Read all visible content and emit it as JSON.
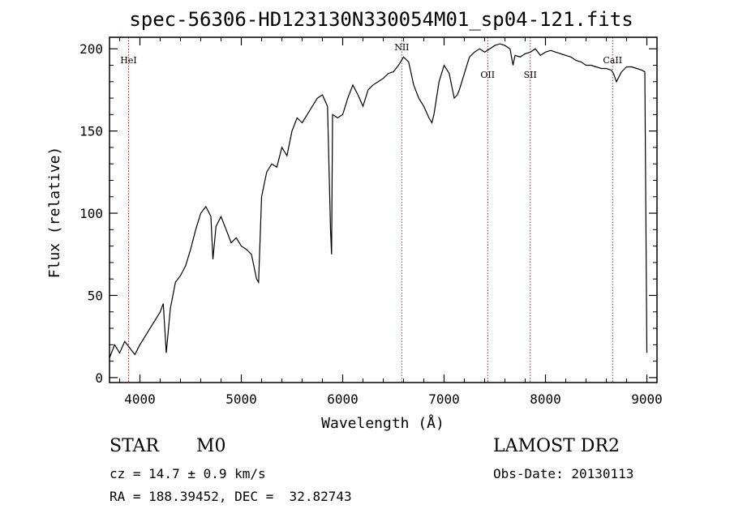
{
  "chart_data": {
    "type": "line",
    "title": "spec-56306-HD123130N330054M01_sp04-121.fits",
    "xlabel": "Wavelength (Å)",
    "ylabel": "Flux (relative)",
    "xlim": [
      3700,
      9100
    ],
    "ylim": [
      -3,
      207
    ],
    "xticks": [
      4000,
      5000,
      6000,
      7000,
      8000,
      9000
    ],
    "yticks": [
      0,
      50,
      100,
      150,
      200
    ],
    "grid": false,
    "line_color": "#000000",
    "marker_color": "#b22222",
    "series": [
      {
        "x": [
          3700,
          3750,
          3800,
          3850,
          3900,
          3950,
          4000,
          4050,
          4100,
          4150,
          4200,
          4230,
          4260,
          4300,
          4350,
          4400,
          4450,
          4500,
          4550,
          4600,
          4650,
          4700,
          4720,
          4750,
          4800,
          4850,
          4900,
          4950,
          5000,
          5050,
          5100,
          5150,
          5170,
          5200,
          5250,
          5300,
          5350,
          5400,
          5450,
          5500,
          5550,
          5600,
          5650,
          5700,
          5750,
          5800,
          5850,
          5880,
          5890,
          5900,
          5950,
          6000,
          6050,
          6100,
          6150,
          6200,
          6250,
          6300,
          6350,
          6400,
          6450,
          6500,
          6550,
          6600,
          6650,
          6700,
          6750,
          6800,
          6850,
          6880,
          6900,
          6950,
          7000,
          7050,
          7100,
          7130,
          7150,
          7200,
          7250,
          7300,
          7350,
          7400,
          7450,
          7500,
          7550,
          7600,
          7650,
          7680,
          7700,
          7750,
          7800,
          7850,
          7900,
          7950,
          8000,
          8050,
          8100,
          8150,
          8200,
          8250,
          8300,
          8350,
          8400,
          8450,
          8500,
          8550,
          8600,
          8650,
          8670,
          8700,
          8750,
          8800,
          8850,
          8900,
          8950,
          8980,
          9000
        ],
        "y": [
          12,
          20,
          15,
          22,
          18,
          14,
          20,
          25,
          30,
          35,
          40,
          45,
          15,
          42,
          58,
          62,
          68,
          78,
          90,
          100,
          104,
          98,
          72,
          92,
          98,
          90,
          82,
          85,
          80,
          78,
          75,
          60,
          58,
          110,
          125,
          130,
          128,
          140,
          135,
          150,
          158,
          155,
          160,
          165,
          170,
          172,
          165,
          90,
          75,
          160,
          158,
          160,
          170,
          178,
          172,
          165,
          175,
          178,
          180,
          182,
          185,
          186,
          190,
          195,
          192,
          178,
          170,
          165,
          158,
          155,
          160,
          180,
          190,
          185,
          170,
          172,
          175,
          185,
          195,
          198,
          200,
          198,
          200,
          202,
          203,
          202,
          200,
          190,
          196,
          195,
          197,
          198,
          200,
          196,
          198,
          199,
          198,
          197,
          196,
          195,
          193,
          192,
          190,
          190,
          189,
          188,
          188,
          187,
          185,
          180,
          186,
          189,
          189,
          188,
          187,
          186,
          15
        ]
      }
    ],
    "markers": [
      {
        "label": "HeI",
        "x": 3888
      },
      {
        "label": "NII",
        "x": 6583
      },
      {
        "label": "OII",
        "x": 7430
      },
      {
        "label": "SII",
        "x": 7850
      },
      {
        "label": "CaII",
        "x": 8662
      }
    ]
  },
  "info": {
    "object_class": "STAR",
    "subclass": "M0",
    "cz": "cz = 14.7 ± 0.9 km/s",
    "radec": "RA = 188.39452, DEC =  32.82743",
    "survey": "LAMOST DR2",
    "obs_date": "Obs-Date: 20130113"
  }
}
